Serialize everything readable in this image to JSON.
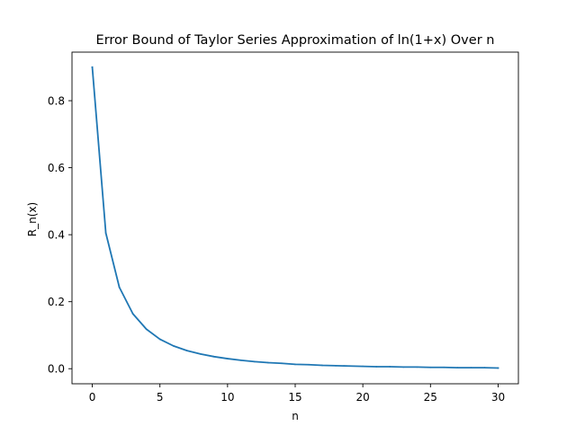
{
  "chart_data": {
    "type": "line",
    "title": "Error Bound of Taylor Series Approximation of ln(1+x) Over n",
    "xlabel": "n",
    "ylabel": "R_n(x)",
    "xlim": [
      -1.5,
      31.5
    ],
    "ylim": [
      -0.045,
      0.945
    ],
    "xticks": [
      0,
      5,
      10,
      15,
      20,
      25,
      30
    ],
    "xtick_labels": [
      "0",
      "5",
      "10",
      "15",
      "20",
      "25",
      "30"
    ],
    "yticks": [
      0.0,
      0.2,
      0.4,
      0.6,
      0.8
    ],
    "ytick_labels": [
      "0.0",
      "0.2",
      "0.4",
      "0.6",
      "0.8"
    ],
    "grid": false,
    "series": [
      {
        "color": "#1f77b4",
        "x": [
          0,
          1,
          2,
          3,
          4,
          5,
          6,
          7,
          8,
          9,
          10,
          11,
          12,
          13,
          14,
          15,
          16,
          17,
          18,
          19,
          20,
          21,
          22,
          23,
          24,
          25,
          26,
          27,
          28,
          29,
          30
        ],
        "y": [
          0.9,
          0.405,
          0.243,
          0.164,
          0.118,
          0.088,
          0.068,
          0.054,
          0.044,
          0.036,
          0.03,
          0.025,
          0.021,
          0.018,
          0.016,
          0.013,
          0.012,
          0.01,
          0.009,
          0.008,
          0.007,
          0.006,
          0.006,
          0.005,
          0.005,
          0.004,
          0.004,
          0.003,
          0.003,
          0.003,
          0.002
        ]
      }
    ]
  }
}
